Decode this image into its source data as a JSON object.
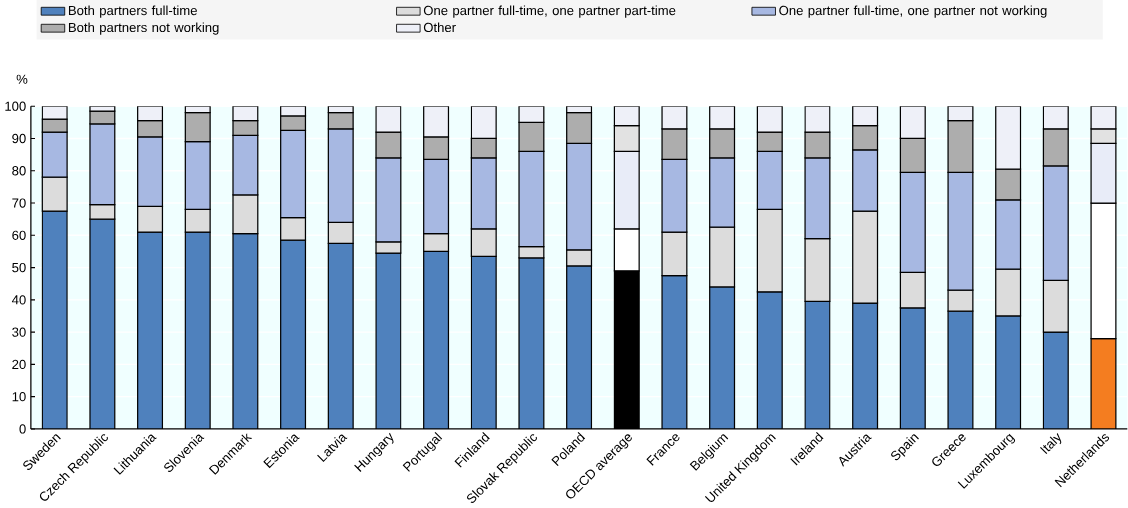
{
  "chart_data": {
    "type": "bar",
    "stacked": true,
    "ylabel": "%",
    "ylim": [
      0,
      100
    ],
    "yticks": [
      0,
      10,
      20,
      30,
      40,
      50,
      60,
      70,
      80,
      90,
      100
    ],
    "grid": "y",
    "legend": "top",
    "categories": [
      "Sweden",
      "Czech Republic",
      "Lithuania",
      "Slovenia",
      "Denmark",
      "Estonia",
      "Latvia",
      "Hungary",
      "Portugal",
      "Finland",
      "Slovak Republic",
      "Poland",
      "OECD average",
      "France",
      "Belgium",
      "United Kingdom",
      "Ireland",
      "Austria",
      "Spain",
      "Greece",
      "Luxembourg",
      "Italy",
      "Netherlands"
    ],
    "series": [
      {
        "name": "Both partners full-time",
        "color": "#4f81bd",
        "colors": [
          "#4f81bd",
          "#4f81bd",
          "#4f81bd",
          "#4f81bd",
          "#4f81bd",
          "#4f81bd",
          "#4f81bd",
          "#4f81bd",
          "#4f81bd",
          "#4f81bd",
          "#4f81bd",
          "#4f81bd",
          "#000000",
          "#4f81bd",
          "#4f81bd",
          "#4f81bd",
          "#4f81bd",
          "#4f81bd",
          "#4f81bd",
          "#4f81bd",
          "#4f81bd",
          "#4f81bd",
          "#f47d20"
        ],
        "values": [
          67.5,
          65,
          61,
          61,
          60.5,
          58.5,
          57.5,
          54.5,
          55,
          53.5,
          53,
          50.5,
          49,
          47.5,
          44,
          42.5,
          39.5,
          39,
          37.5,
          36.5,
          35,
          30,
          28
        ]
      },
      {
        "name": "One partner full-time, one partner part-time",
        "color": "#dcdcdc",
        "colors": [
          "#dcdcdc",
          "#dcdcdc",
          "#dcdcdc",
          "#dcdcdc",
          "#dcdcdc",
          "#dcdcdc",
          "#dcdcdc",
          "#dcdcdc",
          "#dcdcdc",
          "#dcdcdc",
          "#dcdcdc",
          "#dcdcdc",
          "#ffffff",
          "#dcdcdc",
          "#dcdcdc",
          "#dcdcdc",
          "#dcdcdc",
          "#dcdcdc",
          "#dcdcdc",
          "#dcdcdc",
          "#dcdcdc",
          "#dcdcdc",
          "#ffffff"
        ],
        "values": [
          10.5,
          4.5,
          8,
          7,
          12,
          7,
          6.5,
          3.5,
          5.5,
          8.5,
          3.5,
          5,
          13,
          13.5,
          18.5,
          25.5,
          19.5,
          28.5,
          11,
          6.5,
          14.5,
          16,
          42
        ]
      },
      {
        "name": "One partner full-time, one partner not working",
        "color": "#a7b8e2",
        "colors": [
          "#a7b8e2",
          "#a7b8e2",
          "#a7b8e2",
          "#a7b8e2",
          "#a7b8e2",
          "#a7b8e2",
          "#a7b8e2",
          "#a7b8e2",
          "#a7b8e2",
          "#a7b8e2",
          "#a7b8e2",
          "#a7b8e2",
          "#e8ecf8",
          "#a7b8e2",
          "#a7b8e2",
          "#a7b8e2",
          "#a7b8e2",
          "#a7b8e2",
          "#a7b8e2",
          "#a7b8e2",
          "#a7b8e2",
          "#a7b8e2",
          "#e8ecf8"
        ],
        "values": [
          14,
          25,
          21.5,
          21,
          18.5,
          27,
          29,
          26,
          23,
          22,
          29.5,
          33,
          24,
          22.5,
          21.5,
          18,
          25,
          19,
          31,
          36.5,
          21.5,
          35.5,
          18.5
        ]
      },
      {
        "name": "Both partners not working",
        "color": "#adadad",
        "colors": [
          "#adadad",
          "#adadad",
          "#adadad",
          "#adadad",
          "#adadad",
          "#adadad",
          "#adadad",
          "#adadad",
          "#adadad",
          "#adadad",
          "#adadad",
          "#adadad",
          "#e2e2e2",
          "#adadad",
          "#adadad",
          "#adadad",
          "#adadad",
          "#adadad",
          "#adadad",
          "#adadad",
          "#adadad",
          "#adadad",
          "#e2e2e2"
        ],
        "values": [
          4,
          4,
          5,
          9,
          4.5,
          4.5,
          5,
          8,
          7,
          6,
          9,
          9.5,
          8,
          9.5,
          9,
          6,
          8,
          7.5,
          10.5,
          16,
          9.5,
          11.5,
          4.5
        ]
      },
      {
        "name": "Other",
        "color": "#eef0f8",
        "colors": [
          "#eef0f8",
          "#eef0f8",
          "#eef0f8",
          "#eef0f8",
          "#eef0f8",
          "#eef0f8",
          "#eef0f8",
          "#eef0f8",
          "#eef0f8",
          "#eef0f8",
          "#eef0f8",
          "#eef0f8",
          "#eef0f8",
          "#eef0f8",
          "#eef0f8",
          "#eef0f8",
          "#eef0f8",
          "#eef0f8",
          "#eef0f8",
          "#eef0f8",
          "#eef0f8",
          "#eef0f8",
          "#eef0f8"
        ],
        "values": [
          4,
          1.5,
          4.5,
          2,
          4.5,
          3,
          2,
          8,
          9.5,
          10,
          5,
          2,
          6,
          7,
          7,
          8,
          8,
          6,
          10,
          4.5,
          19.5,
          7,
          7
        ]
      }
    ]
  }
}
